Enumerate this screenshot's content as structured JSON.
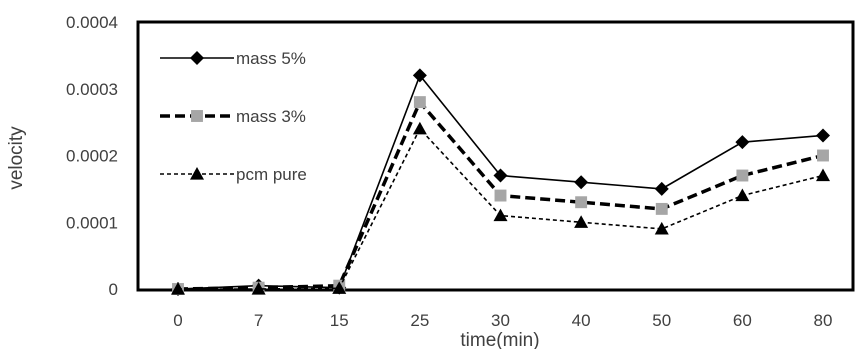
{
  "chart_data": {
    "type": "line",
    "title": "",
    "xlabel": "time(min)",
    "ylabel": "velocity",
    "categories": [
      "0",
      "7",
      "15",
      "25",
      "30",
      "40",
      "50",
      "60",
      "80"
    ],
    "ylim": [
      0,
      0.0004
    ],
    "yticks": [
      "0",
      "0.0001",
      "0.0002",
      "0.0003",
      "0.0004"
    ],
    "grid": false,
    "legend_position": "top-left",
    "series": [
      {
        "name": "mass 5%",
        "values": [
          0,
          5e-06,
          2e-06,
          0.00032,
          0.00017,
          0.00016,
          0.00015,
          0.00022,
          0.00023
        ],
        "color": "#000000",
        "line_style": "solid",
        "marker": "diamond"
      },
      {
        "name": "mass 3%",
        "values": [
          0,
          2e-06,
          5e-06,
          0.00028,
          0.00014,
          0.00013,
          0.00012,
          0.00017,
          0.0002
        ],
        "color": "#000000",
        "marker_color": "#a6a6a6",
        "line_style": "dashed",
        "marker": "square"
      },
      {
        "name": "pcm pure",
        "values": [
          0,
          0,
          1e-06,
          0.00024,
          0.00011,
          0.0001,
          9e-05,
          0.00014,
          0.00017
        ],
        "color": "#000000",
        "line_style": "dotted",
        "marker": "triangle"
      }
    ]
  }
}
